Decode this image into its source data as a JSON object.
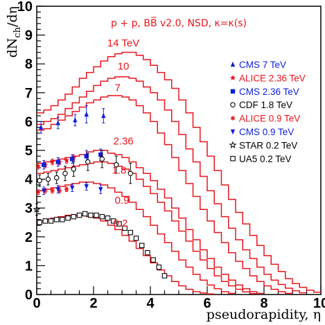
{
  "chart_data": {
    "type": "line",
    "title": "p + p, BB̅ v2.0, NSD, κ=κ(s)",
    "xlabel": "pseudorapidity, η",
    "ylabel": "dN_ch/dη",
    "ylabel_main": "dN",
    "ylabel_sub": "ch",
    "ylabel_tail": "/dη",
    "xlim": [
      0,
      10
    ],
    "ylim": [
      0,
      10
    ],
    "x_ticks": [
      "0",
      "2",
      "4",
      "6",
      "8",
      "10"
    ],
    "y_ticks": [
      "0",
      "1",
      "2",
      "3",
      "4",
      "5",
      "6",
      "7",
      "8",
      "9",
      "10"
    ],
    "grid": false,
    "legend_position": "right",
    "colors": {
      "model": "#e8141c",
      "blue": "#1020d8",
      "black": "#000000"
    },
    "series": [
      {
        "name": "14 TeV",
        "x": [
          0,
          0.25,
          0.5,
          0.75,
          1,
          1.25,
          1.5,
          1.75,
          2,
          2.25,
          2.5,
          2.75,
          3,
          3.25,
          3.5,
          3.75,
          4,
          4.25,
          4.5,
          4.75,
          5,
          5.25,
          5.5,
          5.75,
          6,
          6.25,
          6.5,
          6.75,
          7,
          7.25,
          7.5,
          7.75,
          8,
          8.25,
          8.5,
          8.75,
          9,
          9.25,
          9.5,
          9.75
        ],
        "values": [
          6.3,
          6.4,
          6.55,
          6.75,
          6.95,
          7.2,
          7.5,
          7.7,
          7.9,
          8.1,
          8.25,
          8.35,
          8.4,
          8.4,
          8.3,
          8.15,
          7.95,
          7.7,
          7.45,
          7.15,
          6.75,
          6.3,
          5.8,
          5.3,
          4.8,
          4.3,
          3.8,
          3.3,
          2.85,
          2.45,
          2.05,
          1.7,
          1.35,
          1.05,
          0.8,
          0.55,
          0.38,
          0.25,
          0.15,
          0.08
        ]
      },
      {
        "name": "10",
        "x": [
          0,
          0.25,
          0.5,
          0.75,
          1,
          1.25,
          1.5,
          1.75,
          2,
          2.25,
          2.5,
          2.75,
          3,
          3.25,
          3.5,
          3.75,
          4,
          4.25,
          4.5,
          4.75,
          5,
          5.25,
          5.5,
          5.75,
          6,
          6.25,
          6.5,
          6.75,
          7,
          7.25,
          7.5,
          7.75,
          8,
          8.25,
          8.5,
          8.75,
          9,
          9.25
        ],
        "values": [
          5.9,
          6.0,
          6.1,
          6.25,
          6.45,
          6.65,
          6.85,
          7.05,
          7.25,
          7.4,
          7.5,
          7.55,
          7.55,
          7.5,
          7.4,
          7.2,
          7.0,
          6.75,
          6.4,
          6.0,
          5.55,
          5.05,
          4.6,
          4.1,
          3.6,
          3.15,
          2.7,
          2.3,
          1.9,
          1.55,
          1.25,
          0.95,
          0.7,
          0.5,
          0.35,
          0.22,
          0.13,
          0.06
        ]
      },
      {
        "name": "7",
        "x": [
          0,
          0.25,
          0.5,
          0.75,
          1,
          1.25,
          1.5,
          1.75,
          2,
          2.25,
          2.5,
          2.75,
          3,
          3.25,
          3.5,
          3.75,
          4,
          4.25,
          4.5,
          4.75,
          5,
          5.25,
          5.5,
          5.75,
          6,
          6.25,
          6.5,
          6.75,
          7,
          7.25,
          7.5,
          7.75,
          8,
          8.25,
          8.5,
          8.75
        ],
        "values": [
          5.7,
          5.75,
          5.9,
          6.05,
          6.2,
          6.35,
          6.5,
          6.65,
          6.75,
          6.85,
          6.9,
          6.9,
          6.85,
          6.75,
          6.55,
          6.3,
          6.0,
          5.6,
          5.2,
          4.75,
          4.3,
          3.85,
          3.4,
          2.95,
          2.55,
          2.15,
          1.8,
          1.45,
          1.15,
          0.9,
          0.65,
          0.45,
          0.3,
          0.18,
          0.1,
          0.04
        ]
      },
      {
        "name": "2.36",
        "x": [
          0,
          0.25,
          0.5,
          0.75,
          1,
          1.25,
          1.5,
          1.75,
          2,
          2.25,
          2.5,
          2.75,
          3,
          3.25,
          3.5,
          3.75,
          4,
          4.25,
          4.5,
          4.75,
          5,
          5.25,
          5.5,
          5.75,
          6,
          6.25,
          6.5,
          6.75,
          7,
          7.25,
          7.5,
          7.75
        ],
        "values": [
          4.55,
          4.6,
          4.65,
          4.7,
          4.75,
          4.8,
          4.85,
          4.95,
          5.0,
          5.0,
          4.9,
          4.85,
          4.75,
          4.6,
          4.4,
          4.2,
          3.95,
          3.65,
          3.35,
          3.0,
          2.65,
          2.25,
          1.9,
          1.55,
          1.25,
          0.95,
          0.7,
          0.5,
          0.33,
          0.2,
          0.1,
          0.04
        ]
      },
      {
        "name": "1.8",
        "x": [
          0,
          0.25,
          0.5,
          0.75,
          1,
          1.25,
          1.5,
          1.75,
          2,
          2.25,
          2.5,
          2.75,
          3,
          3.25,
          3.5,
          3.75,
          4,
          4.25,
          4.5,
          4.75,
          5,
          5.25,
          5.5,
          5.75,
          6,
          6.25,
          6.5,
          6.75,
          7,
          7.25,
          7.5
        ],
        "values": [
          4.2,
          4.25,
          4.3,
          4.35,
          4.4,
          4.45,
          4.5,
          4.55,
          4.6,
          4.6,
          4.55,
          4.45,
          4.35,
          4.2,
          4.0,
          3.75,
          3.5,
          3.2,
          2.9,
          2.55,
          2.2,
          1.85,
          1.5,
          1.2,
          0.9,
          0.65,
          0.45,
          0.3,
          0.18,
          0.09,
          0.03
        ]
      },
      {
        "name": "0.9",
        "x": [
          0,
          0.25,
          0.5,
          0.75,
          1,
          1.25,
          1.5,
          1.75,
          2,
          2.25,
          2.5,
          2.75,
          3,
          3.25,
          3.5,
          3.75,
          4,
          4.25,
          4.5,
          4.75,
          5,
          5.25,
          5.5,
          5.75,
          6,
          6.25,
          6.5,
          6.75
        ],
        "values": [
          3.6,
          3.65,
          3.7,
          3.75,
          3.8,
          3.85,
          3.9,
          3.9,
          3.85,
          3.8,
          3.7,
          3.55,
          3.4,
          3.2,
          2.95,
          2.7,
          2.4,
          2.1,
          1.8,
          1.5,
          1.2,
          0.95,
          0.7,
          0.5,
          0.33,
          0.2,
          0.1,
          0.04
        ]
      },
      {
        "name": "0.2",
        "x": [
          0,
          0.25,
          0.5,
          0.75,
          1,
          1.25,
          1.5,
          1.75,
          2,
          2.25,
          2.5,
          2.75,
          3,
          3.25,
          3.5,
          3.75,
          4,
          4.25,
          4.5,
          4.75,
          5,
          5.25,
          5.5,
          5.75,
          6
        ],
        "values": [
          2.55,
          2.6,
          2.65,
          2.7,
          2.75,
          2.75,
          2.75,
          2.7,
          2.65,
          2.55,
          2.4,
          2.25,
          2.05,
          1.85,
          1.6,
          1.35,
          1.1,
          0.85,
          0.65,
          0.45,
          0.3,
          0.18,
          0.1,
          0.05,
          0.02
        ]
      }
    ],
    "labels": [
      {
        "text": "14 TeV",
        "x": 3.05,
        "y": 8.6
      },
      {
        "text": "10",
        "x": 3.05,
        "y": 7.8
      },
      {
        "text": "7",
        "x": 2.85,
        "y": 7.05
      },
      {
        "text": "2.36",
        "x": 3.05,
        "y": 5.2
      },
      {
        "text": "1.8",
        "x": 2.9,
        "y": 4.2
      },
      {
        "text": "0.9",
        "x": 3.0,
        "y": 3.15
      },
      {
        "text": "0.2",
        "x": 2.95,
        "y": 2.35
      }
    ],
    "data": [
      {
        "name": "CMS 7 TeV",
        "marker": "triangle-up",
        "color": "#1020d8",
        "x": [
          0.15,
          0.75,
          1.35,
          1.75,
          2.35
        ],
        "y": [
          5.8,
          5.95,
          6.05,
          6.25,
          6.2
        ],
        "err": [
          0.2,
          0.2,
          0.2,
          0.3,
          0.25
        ]
      },
      {
        "name": "ALICE 2.36 TeV",
        "marker": "star",
        "color": "#e8141c",
        "x": [
          0.05,
          0.3,
          0.55,
          0.8,
          1.05,
          1.3
        ],
        "y": [
          4.45,
          4.5,
          4.6,
          4.6,
          4.65,
          4.75
        ],
        "err": [
          0.1,
          0.1,
          0.1,
          0.1,
          0.1,
          0.1
        ]
      },
      {
        "name": "CMS 2.36 TeV",
        "marker": "square",
        "color": "#1020d8",
        "x": [
          0.25,
          0.75,
          1.25,
          1.75,
          2.25
        ],
        "y": [
          4.5,
          4.6,
          4.7,
          4.8,
          4.85
        ],
        "err": [
          0.15,
          0.15,
          0.15,
          0.2,
          0.2
        ]
      },
      {
        "name": "CDF 1.8 TeV",
        "marker": "circle-open",
        "color": "#000000",
        "x": [
          0.1,
          0.4,
          0.7,
          1.0,
          1.3,
          1.8,
          2.3,
          2.8,
          3.3
        ],
        "y": [
          3.95,
          4.0,
          4.05,
          4.2,
          4.35,
          4.6,
          4.7,
          4.5,
          4.2
        ],
        "err": [
          0.2,
          0.2,
          0.2,
          0.25,
          0.25,
          0.3,
          0.3,
          0.3,
          0.35
        ]
      },
      {
        "name": "ALICE 0.9 TeV",
        "marker": "asterisk",
        "color": "#e8141c",
        "x": [
          0.05,
          0.3,
          0.55,
          0.8,
          1.05
        ],
        "y": [
          3.55,
          3.6,
          3.6,
          3.6,
          3.65
        ],
        "err": [
          0.08,
          0.08,
          0.08,
          0.08,
          0.08
        ]
      },
      {
        "name": "CMS 0.9 TeV",
        "marker": "triangle-down",
        "color": "#1020d8",
        "x": [
          0.25,
          0.75,
          1.25,
          1.75,
          2.25
        ],
        "y": [
          3.6,
          3.65,
          3.7,
          3.75,
          3.65
        ],
        "err": [
          0.13,
          0.13,
          0.13,
          0.13,
          0.15
        ]
      },
      {
        "name": "STAR 0.2 TeV",
        "marker": "star-open",
        "color": "#000000",
        "x": [
          0.0
        ],
        "y": [
          2.95
        ],
        "err": [
          0.2
        ]
      },
      {
        "name": "UA5 0.2 TeV",
        "marker": "square-open",
        "color": "#000000",
        "x": [
          0.1,
          0.3,
          0.5,
          0.7,
          0.9,
          1.1,
          1.3,
          1.5,
          1.7,
          1.9,
          2.1,
          2.3,
          2.5,
          2.7,
          2.9,
          3.1,
          3.3,
          3.5,
          3.7,
          3.9,
          4.1,
          4.3,
          4.5
        ],
        "y": [
          2.5,
          2.55,
          2.55,
          2.6,
          2.6,
          2.65,
          2.7,
          2.75,
          2.8,
          2.75,
          2.75,
          2.7,
          2.65,
          2.55,
          2.45,
          2.3,
          2.15,
          1.95,
          1.7,
          1.45,
          1.2,
          0.95,
          0.65
        ],
        "err": [
          0.05,
          0.05,
          0.05,
          0.05,
          0.05,
          0.05,
          0.05,
          0.05,
          0.05,
          0.05,
          0.05,
          0.05,
          0.05,
          0.05,
          0.05,
          0.05,
          0.05,
          0.05,
          0.05,
          0.05,
          0.05,
          0.05,
          0.05
        ]
      }
    ]
  }
}
